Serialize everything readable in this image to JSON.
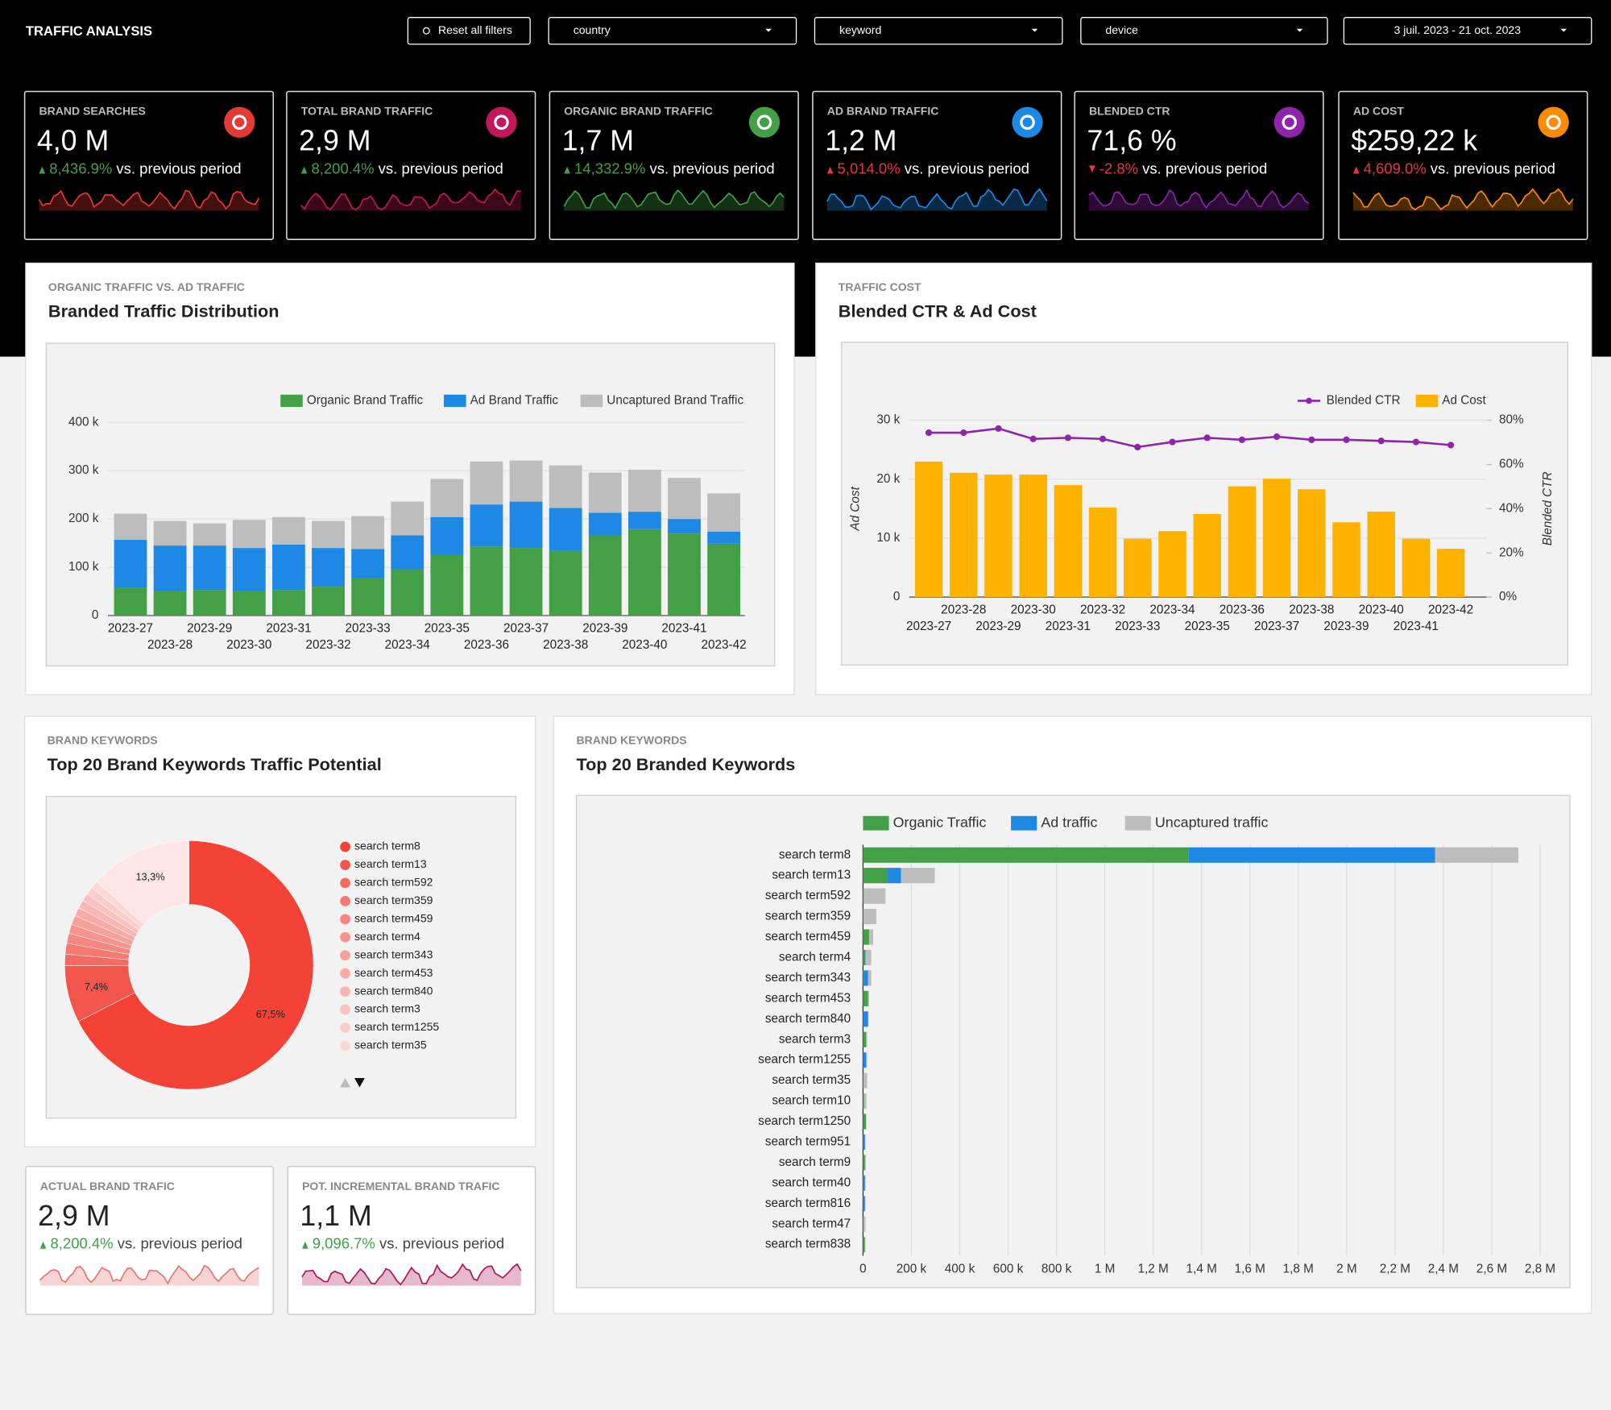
{
  "header": {
    "title": "TRAFFIC ANALYSIS",
    "controls": [
      "Reset all filters",
      "country",
      "keyword",
      "device",
      "3 juil. 2023 - 21 oct. 2023"
    ]
  },
  "kpis": [
    {
      "label": "BRAND SEARCHES",
      "value": "4,0 M",
      "change": "8,436.9%",
      "comparison": "vs. previous period",
      "color": "#e53935",
      "change_color": "#43a047",
      "arrow": "up"
    },
    {
      "label": "TOTAL BRAND TRAFFIC",
      "value": "2,9 M",
      "change": "8,200.4%",
      "comparison": "vs. previous period",
      "color": "#c2185b",
      "change_color": "#43a047",
      "arrow": "up"
    },
    {
      "label": "ORGANIC BRAND TRAFFIC",
      "value": "1,7 M",
      "change": "14,332.9%",
      "comparison": "vs. previous period",
      "color": "#43a047",
      "change_color": "#43a047",
      "arrow": "up"
    },
    {
      "label": "AD BRAND TRAFFIC",
      "value": "1,2 M",
      "change": "5,014.0%",
      "comparison": "vs. previous period",
      "color": "#1e88e5",
      "change_color": "#e53935",
      "arrow": "up"
    },
    {
      "label": "BLENDED CTR",
      "value": "71,6 %",
      "change": "-2.8%",
      "comparison": "vs. previous period",
      "color": "#8e24aa",
      "change_color": "#e53935",
      "arrow": "down"
    },
    {
      "label": "AD COST",
      "value": "$259,22 k",
      "change": "4,609.0%",
      "comparison": "vs. previous period",
      "color": "#fb8c00",
      "change_color": "#e53935",
      "arrow": "up"
    }
  ],
  "chart_data": [
    {
      "type": "bar",
      "stacked": true,
      "eyebrow": "ORGANIC TRAFFIC VS. AD TRAFFIC",
      "title": "Branded Traffic Distribution",
      "categories": [
        "2023-27",
        "2023-28",
        "2023-29",
        "2023-30",
        "2023-31",
        "2023-32",
        "2023-33",
        "2023-34",
        "2023-35",
        "2023-36",
        "2023-37",
        "2023-38",
        "2023-39",
        "2023-40",
        "2023-41",
        "2023-42"
      ],
      "series": [
        {
          "name": "Organic Brand Traffic",
          "color": "#43a047",
          "values": [
            57000,
            51000,
            53000,
            51000,
            53000,
            60000,
            77000,
            96000,
            126000,
            143000,
            140000,
            134000,
            166000,
            179000,
            170000,
            149000
          ]
        },
        {
          "name": "Ad Brand Traffic",
          "color": "#1e88e5",
          "values": [
            100000,
            94000,
            92000,
            89000,
            94000,
            80000,
            61000,
            70000,
            78000,
            87000,
            96000,
            89000,
            47000,
            36000,
            30000,
            25000
          ]
        },
        {
          "name": "Uncaptured Brand Traffic",
          "color": "#bdbdbd",
          "values": [
            54000,
            51000,
            46000,
            58000,
            57000,
            56000,
            68000,
            70000,
            79000,
            89000,
            85000,
            88000,
            83000,
            87000,
            85000,
            79000
          ]
        }
      ],
      "ylim": [
        0,
        400000
      ],
      "yticks": [
        0,
        {
          "value": 100000,
          "label": "100 k"
        },
        {
          "value": 200000,
          "label": "200 k"
        },
        {
          "value": 300000,
          "label": "300 k"
        },
        {
          "value": 400000,
          "label": "400 k"
        }
      ],
      "grid": true,
      "legend": "top-right"
    },
    {
      "type": "combo",
      "eyebrow": "TRAFFIC COST",
      "title": "Blended CTR & Ad Cost",
      "categories": [
        "2023-27",
        "2023-28",
        "2023-29",
        "2023-30",
        "2023-31",
        "2023-32",
        "2023-33",
        "2023-34",
        "2023-35",
        "2023-36",
        "2023-37",
        "2023-38",
        "2023-39",
        "2023-40",
        "2023-41",
        "2023-42"
      ],
      "series": [
        {
          "name": "Blended CTR",
          "type": "line",
          "axis": "y2",
          "color": "#8e24aa",
          "values": [
            74.4,
            74.4,
            76.3,
            71.6,
            72.1,
            71.6,
            67.9,
            70.2,
            72.1,
            71.2,
            72.6,
            71.2,
            71.2,
            70.7,
            70.2,
            68.8
          ]
        },
        {
          "name": "Ad Cost",
          "type": "bar",
          "color": "#ffb300",
          "values": [
            23000,
            21100,
            20800,
            20800,
            19000,
            15200,
            9900,
            11200,
            14100,
            18800,
            20100,
            18300,
            12700,
            14500,
            9900,
            8200
          ]
        }
      ],
      "ylabel": "Ad Cost",
      "y2label": "Blended CTR",
      "ylim": [
        0,
        30000
      ],
      "yticks": [
        0,
        {
          "value": 10000,
          "label": "10 k"
        },
        {
          "value": 20000,
          "label": "20 k"
        },
        {
          "value": 30000,
          "label": "30 k"
        }
      ],
      "y2lim": [
        0,
        80
      ],
      "y2ticks": [
        {
          "value": 0,
          "label": "0%"
        },
        {
          "value": 20,
          "label": "20%"
        },
        {
          "value": 40,
          "label": "40%"
        },
        {
          "value": 60,
          "label": "60%"
        },
        {
          "value": 80,
          "label": "80%"
        }
      ],
      "grid": true,
      "legend": "top-right"
    },
    {
      "type": "donut",
      "eyebrow": "BRAND KEYWORDS",
      "title": "Top 20 Brand Keywords Traffic Potential",
      "categories": [
        "search term8",
        "search term13",
        "search term592",
        "search term359",
        "search term459",
        "search term4",
        "search term343",
        "search term453",
        "search term840",
        "search term3",
        "search term1255",
        "search term35",
        null
      ],
      "values": [
        67.5,
        7.4,
        1.5,
        1.4,
        1.3,
        1.2,
        1.2,
        1.1,
        1.1,
        1.0,
        1.0,
        1.0,
        13.3
      ],
      "value_labels": [
        "67,5%",
        "7,4%",
        null,
        null,
        null,
        null,
        null,
        null,
        null,
        null,
        null,
        null,
        "13,3%"
      ],
      "colors": [
        "#f44336",
        "#f1554b",
        "#f36b62",
        "#f47a71",
        "#f5877f",
        "#f6938c",
        "#f79f99",
        "#f8aba6",
        "#f9b6b2",
        "#fac2be",
        "#fbcdca",
        "#fcd8d5",
        "#fde6e5"
      ],
      "legend": "right"
    },
    {
      "type": "hbar",
      "stacked": true,
      "eyebrow": "BRAND KEYWORDS",
      "title": "Top 20 Branded Keywords",
      "categories": [
        "search term8",
        "search term13",
        "search term592",
        "search term359",
        "search term459",
        "search term4",
        "search term343",
        "search term453",
        "search term840",
        "search term3",
        "search term1255",
        "search term35",
        "search term10",
        "search term1250",
        "search term951",
        "search term9",
        "search term40",
        "search term816",
        "search term47",
        "search term838"
      ],
      "series": [
        {
          "name": "Organic Traffic",
          "color": "#43a047",
          "values": [
            1347000,
            102000,
            3000,
            2000,
            25000,
            5000,
            3000,
            21000,
            2000,
            13000,
            2000,
            2000,
            4000,
            12000,
            2000,
            8000,
            2000,
            2000,
            2000,
            6000
          ]
        },
        {
          "name": "Ad traffic",
          "color": "#1e88e5",
          "values": [
            1019000,
            55000,
            0,
            0,
            0,
            5000,
            18000,
            0,
            19000,
            0,
            11000,
            0,
            0,
            0,
            6000,
            0,
            6000,
            6000,
            0,
            2000
          ]
        },
        {
          "name": "Uncaptured traffic",
          "color": "#bdbdbd",
          "values": [
            344000,
            140000,
            90000,
            53000,
            17000,
            24000,
            13000,
            4000,
            2000,
            4000,
            4000,
            15000,
            10000,
            2000,
            2000,
            4000,
            2000,
            2000,
            8000,
            2000
          ]
        }
      ],
      "xlim": [
        0,
        2800000
      ],
      "xticks": [
        0,
        {
          "value": 200000,
          "label": "200 k"
        },
        {
          "value": 400000,
          "label": "400 k"
        },
        {
          "value": 600000,
          "label": "600 k"
        },
        {
          "value": 800000,
          "label": "800 k"
        },
        {
          "value": 1000000,
          "label": "1 M"
        },
        {
          "value": 1200000,
          "label": "1,2 M"
        },
        {
          "value": 1400000,
          "label": "1,4 M"
        },
        {
          "value": 1600000,
          "label": "1,6 M"
        },
        {
          "value": 1800000,
          "label": "1,8 M"
        },
        {
          "value": 2000000,
          "label": "2 M"
        },
        {
          "value": 2200000,
          "label": "2,2 M"
        },
        {
          "value": 2400000,
          "label": "2,4 M"
        },
        {
          "value": 2600000,
          "label": "2,6 M"
        },
        {
          "value": 2800000,
          "label": "2,8 M"
        }
      ],
      "grid": true,
      "legend": "top"
    }
  ],
  "bottom_kpis": [
    {
      "label": "ACTUAL BRAND TRAFIC",
      "value": "2,9 M",
      "change": "8,200.4%",
      "comparison": "vs. previous period",
      "color": "#e57373",
      "change_color": "#43a047",
      "arrow": "up"
    },
    {
      "label": "POT. INCREMENTAL BRAND TRAFIC",
      "value": "1,1 M",
      "change": "9,096.7%",
      "comparison": "vs. previous period",
      "color": "#ad1457",
      "change_color": "#43a047",
      "arrow": "up"
    }
  ]
}
